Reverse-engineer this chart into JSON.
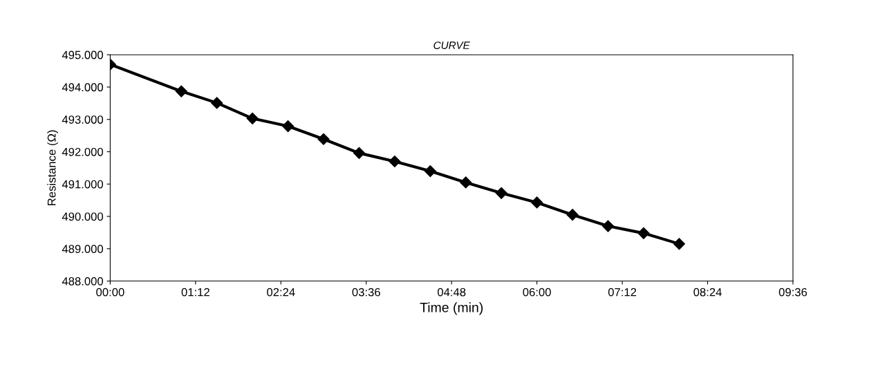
{
  "chart_data": {
    "type": "line",
    "title": "CURVE",
    "xlabel": "Time (min)",
    "ylabel": "Resistance (Ω)",
    "x": [
      0,
      1.0,
      1.5,
      2.0,
      2.5,
      3.0,
      3.5,
      4.0,
      4.5,
      5.0,
      5.5,
      6.0,
      6.5,
      7.0,
      7.5,
      8.0
    ],
    "series": [
      {
        "color": "#000000",
        "values": [
          494.7,
          493.87,
          493.51,
          493.03,
          492.79,
          492.39,
          491.96,
          491.7,
          491.4,
          491.05,
          490.72,
          490.43,
          490.05,
          489.7,
          489.48,
          489.15
        ]
      }
    ],
    "xlim": [
      0,
      9.6
    ],
    "xticks": [
      {
        "value": 0,
        "label": "00:00"
      },
      {
        "value": 1.2,
        "label": "01:12"
      },
      {
        "value": 2.4,
        "label": "02:24"
      },
      {
        "value": 3.6,
        "label": "03:36"
      },
      {
        "value": 4.8,
        "label": "04:48"
      },
      {
        "value": 6.0,
        "label": "06:00"
      },
      {
        "value": 7.2,
        "label": "07:12"
      },
      {
        "value": 8.4,
        "label": "08:24"
      },
      {
        "value": 9.6,
        "label": "09:36"
      }
    ],
    "ylim": [
      488,
      495
    ],
    "yticks": [
      {
        "value": 488,
        "label": "488.000"
      },
      {
        "value": 489,
        "label": "489.000"
      },
      {
        "value": 490,
        "label": "490.000"
      },
      {
        "value": 491,
        "label": "491.000"
      },
      {
        "value": 492,
        "label": "492.000"
      },
      {
        "value": 493,
        "label": "493.000"
      },
      {
        "value": 494,
        "label": "494.000"
      },
      {
        "value": 495,
        "label": "495.000"
      }
    ],
    "marker": "diamond",
    "line_style": "solid",
    "grid": false
  }
}
